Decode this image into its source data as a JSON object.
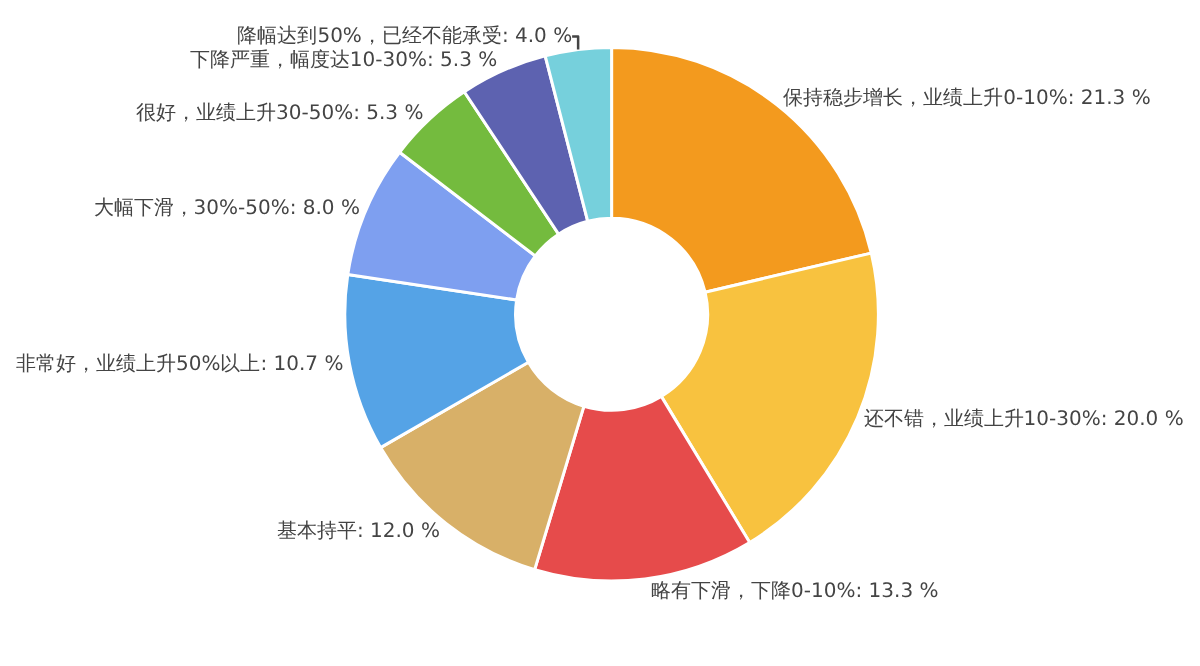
{
  "chart_data": {
    "type": "donut",
    "categories": [
      "保持稳步增长，业绩上升0-10%",
      "还不错，业绩上升10-30%",
      "略有下滑，下降0-10%",
      "基本持平",
      "非常好，业绩上升50%以上",
      "大幅下滑，30%-50%",
      "很好，业绩上升30-50%",
      "下降严重，幅度达10-30%",
      "降幅达到50%，已经不能承受"
    ],
    "values": [
      21.3,
      20.0,
      13.3,
      12.0,
      10.7,
      8.0,
      5.3,
      5.3,
      4.0
    ],
    "value_labels": [
      "21.3 %",
      "20.0 %",
      "13.3 %",
      "12.0 %",
      "10.7 %",
      "8.0 %",
      "5.3 %",
      "5.3 %",
      "4.0 %"
    ],
    "colors": [
      "#f39a1e",
      "#f8c23f",
      "#e64b4b",
      "#d8b068",
      "#55a3e6",
      "#7e9ff0",
      "#74bb3e",
      "#5d62b0",
      "#76d0dc"
    ],
    "legend": false
  }
}
